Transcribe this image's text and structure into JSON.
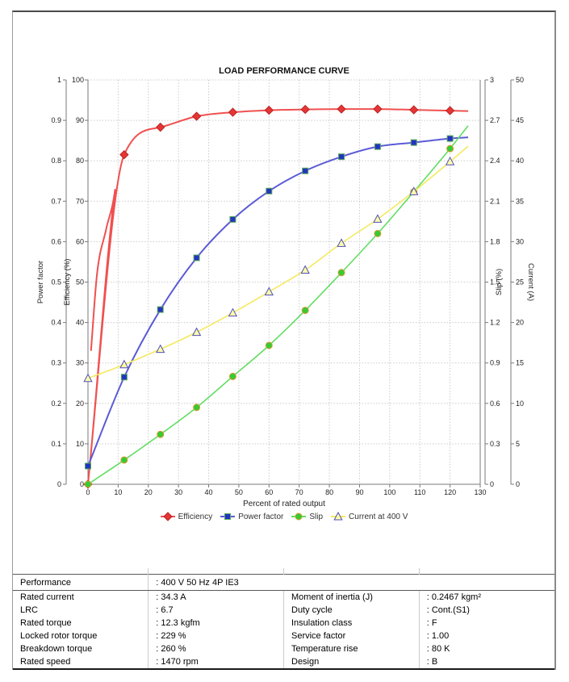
{
  "chart_data": {
    "type": "line",
    "title": "LOAD PERFORMANCE CURVE",
    "grid": true,
    "legend_position": "bottom",
    "x_axis": {
      "label": "Percent of rated output",
      "min": 0,
      "max": 130,
      "tick_step": 10
    },
    "y_axes": [
      {
        "key": "power_factor",
        "label": "Power factor",
        "min": 0,
        "max": 1,
        "tick_step": 0.1,
        "side": "left-outer"
      },
      {
        "key": "efficiency",
        "label": "Efficiency (%)",
        "min": 0,
        "max": 100,
        "tick_step": 10,
        "side": "left-inner"
      },
      {
        "key": "slip",
        "label": "Slip (%)",
        "min": 0,
        "max": 3,
        "tick_step": 0.3,
        "side": "right-inner"
      },
      {
        "key": "current",
        "label": "Current (A)",
        "min": 0,
        "max": 50,
        "tick_step": 5,
        "side": "right-outer"
      }
    ],
    "x": [
      0,
      12,
      24,
      36,
      48,
      60,
      72,
      84,
      96,
      108,
      120
    ],
    "series": [
      {
        "name": "Efficiency",
        "axis": "efficiency",
        "marker": "diamond",
        "line_color": "#f05050",
        "marker_fill": "#e53535",
        "marker_stroke": "#bb2222",
        "values": [
          0,
          81.5,
          88.3,
          91,
          92,
          92.5,
          92.7,
          92.8,
          92.8,
          92.6,
          92.4
        ],
        "curve_samples_pre": [
          [
            1,
            33
          ],
          [
            3,
            52
          ],
          [
            6,
            63
          ],
          [
            9,
            73
          ]
        ],
        "curve_samples_post": [
          [
            126,
            92.3
          ]
        ]
      },
      {
        "name": "Power factor",
        "axis": "power_factor",
        "marker": "square",
        "line_color": "#5b5bd6",
        "marker_fill": "#2433c0",
        "marker_stroke": "#55aa55",
        "values": [
          0.045,
          0.265,
          0.432,
          0.56,
          0.655,
          0.725,
          0.775,
          0.81,
          0.835,
          0.845,
          0.855
        ],
        "curve_samples_post": [
          [
            126,
            0.858
          ]
        ]
      },
      {
        "name": "Slip",
        "axis": "slip",
        "marker": "circle",
        "line_color": "#63dd63",
        "marker_fill": "#33cc33",
        "marker_stroke": "#dd9933",
        "values": [
          0,
          0.18,
          0.37,
          0.57,
          0.8,
          1.03,
          1.29,
          1.57,
          1.86,
          2.17,
          2.49
        ],
        "curve_samples_post": [
          [
            126,
            2.66
          ]
        ]
      },
      {
        "name": "Current at 400 V",
        "axis": "current",
        "marker": "triangle",
        "line_color": "#f5e960",
        "marker_fill": "#ffffa8",
        "marker_stroke": "#4d4dc0",
        "values": [
          13.1,
          14.8,
          16.7,
          18.8,
          21.2,
          23.8,
          26.5,
          29.8,
          32.8,
          36.2,
          39.9
        ],
        "curve_samples_post": [
          [
            126,
            41.8
          ]
        ]
      }
    ],
    "colors": {
      "grid": "#cccccc",
      "axis": "#7a7a7a",
      "tick_text": "#222222",
      "title_text": "#111111"
    }
  },
  "table": {
    "performance": {
      "label": "Performance",
      "value": ": 400 V 50 Hz 4P IE3"
    },
    "rows": [
      {
        "l_label": "Rated current",
        "l_value": ": 34.3 A",
        "r_label": "Moment of inertia (J)",
        "r_value": ": 0.2467 kgm²"
      },
      {
        "l_label": "LRC",
        "l_value": ": 6.7",
        "r_label": "Duty cycle",
        "r_value": ": Cont.(S1)"
      },
      {
        "l_label": "Rated torque",
        "l_value": ": 12.3 kgfm",
        "r_label": "Insulation class",
        "r_value": ": F"
      },
      {
        "l_label": "Locked rotor torque",
        "l_value": ": 229 %",
        "r_label": "Service factor",
        "r_value": ": 1.00"
      },
      {
        "l_label": "Breakdown torque",
        "l_value": ": 260 %",
        "r_label": "Temperature rise",
        "r_value": ": 80 K"
      },
      {
        "l_label": "Rated speed",
        "l_value": ": 1470 rpm",
        "r_label": "Design",
        "r_value": ": B"
      }
    ]
  }
}
